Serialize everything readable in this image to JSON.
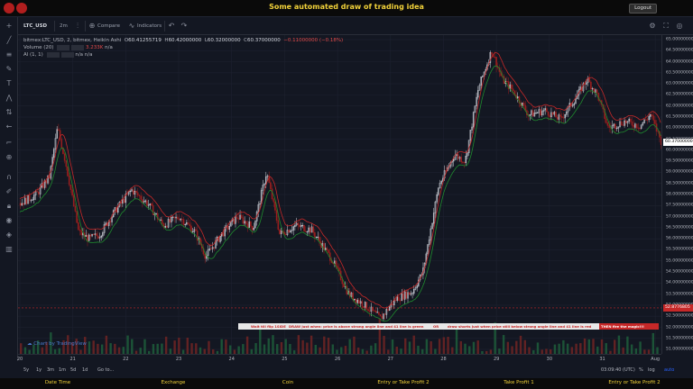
{
  "app": {
    "title": "Some automated draw of trading idea",
    "logout_label": "Logout"
  },
  "toolbar": {
    "symbol": "LTC_USD",
    "interval": "2m",
    "compare_label": "Compare",
    "indicators_label": "Indicators"
  },
  "legend": {
    "title": "bitmex:LTC_USD, 2, bitmex, Heikin Ashi",
    "open_label": "O",
    "open": "60.41255719",
    "high_label": "H",
    "high": "60.42000000",
    "low_label": "L",
    "low": "60.32000000",
    "close_label": "C",
    "close": "60.37000000",
    "change": "−0.11000000 (−0.18%)",
    "volume_label": "Volume (20)",
    "volume_value": "3.233K",
    "volume_na": "n/a",
    "al_label": "Al (1, 1)",
    "al_na1": "n/a",
    "al_na2": "n/a"
  },
  "signal": {
    "seg1": "Wait till flip 1SIDE",
    "seg2": "DRAW just when: price is above strong angle line and 41 line is green",
    "seg3": "OR",
    "seg4": "draw shorts just when price still below strong angle line and 41 line is red",
    "end": "THEN fire the magic!!!",
    "price": "52.8776805"
  },
  "watermark": "Chart by TradingView",
  "bottombar": {
    "ranges": [
      "5y",
      "1y",
      "3m",
      "1m",
      "5d",
      "1d",
      "Go to..."
    ],
    "time": "03:09:40 (UTC)",
    "pct": "%",
    "log": "log",
    "auto": "auto"
  },
  "footer": [
    "Date Time",
    "Exchange",
    "Coin",
    "Entry or Take Profit 2",
    "Take Profit 1",
    "Entry or Take Profit 2"
  ],
  "colors": {
    "up": "#d1d4dc",
    "down": "#c62828",
    "green_line": "#1f8a2e",
    "red_line": "#c62828",
    "accent": "#f2d23a"
  },
  "chart_data": {
    "type": "line",
    "title": "",
    "y_ticks": [
      "65.00000000",
      "64.50000000",
      "64.00000000",
      "63.50000000",
      "63.00000000",
      "62.50000000",
      "62.00000000",
      "61.50000000",
      "61.00000000",
      "60.50000000",
      "60.00000000",
      "59.50000000",
      "59.00000000",
      "58.50000000",
      "58.00000000",
      "57.50000000",
      "57.00000000",
      "56.50000000",
      "56.00000000",
      "55.50000000",
      "55.00000000",
      "54.50000000",
      "54.00000000",
      "53.50000000",
      "53.00000000",
      "52.50000000",
      "52.00000000",
      "51.50000000",
      "51.00000000"
    ],
    "last_price": "60.37000000",
    "x_ticks": [
      "20",
      "21",
      "22",
      "23",
      "24",
      "25",
      "26",
      "27",
      "28",
      "29",
      "30",
      "31",
      "Aug"
    ],
    "ylim": [
      50.8,
      65.2
    ],
    "price_path": [
      {
        "x": 0,
        "y": 57.6
      },
      {
        "x": 0.3,
        "y": 58.0
      },
      {
        "x": 0.55,
        "y": 58.8
      },
      {
        "x": 0.7,
        "y": 61.0
      },
      {
        "x": 0.85,
        "y": 59.5
      },
      {
        "x": 1.1,
        "y": 56.3
      },
      {
        "x": 1.3,
        "y": 56.0
      },
      {
        "x": 1.5,
        "y": 56.2
      },
      {
        "x": 1.8,
        "y": 57.3
      },
      {
        "x": 2.1,
        "y": 58.2
      },
      {
        "x": 2.4,
        "y": 57.6
      },
      {
        "x": 2.7,
        "y": 56.6
      },
      {
        "x": 3.0,
        "y": 57.0
      },
      {
        "x": 3.3,
        "y": 56.3
      },
      {
        "x": 3.5,
        "y": 55.2
      },
      {
        "x": 3.8,
        "y": 56.2
      },
      {
        "x": 4.1,
        "y": 57.0
      },
      {
        "x": 4.4,
        "y": 56.5
      },
      {
        "x": 4.65,
        "y": 59.0
      },
      {
        "x": 4.9,
        "y": 56.2
      },
      {
        "x": 5.2,
        "y": 56.6
      },
      {
        "x": 5.5,
        "y": 56.4
      },
      {
        "x": 5.9,
        "y": 55.0
      },
      {
        "x": 6.2,
        "y": 53.5
      },
      {
        "x": 6.5,
        "y": 53.0
      },
      {
        "x": 6.8,
        "y": 52.4
      },
      {
        "x": 7.1,
        "y": 53.3
      },
      {
        "x": 7.4,
        "y": 53.6
      },
      {
        "x": 7.6,
        "y": 54.5
      },
      {
        "x": 7.9,
        "y": 58.4
      },
      {
        "x": 8.2,
        "y": 59.8
      },
      {
        "x": 8.4,
        "y": 59.5
      },
      {
        "x": 8.65,
        "y": 62.8
      },
      {
        "x": 8.9,
        "y": 64.5
      },
      {
        "x": 9.1,
        "y": 63.2
      },
      {
        "x": 9.3,
        "y": 62.7
      },
      {
        "x": 9.6,
        "y": 61.6
      },
      {
        "x": 9.9,
        "y": 61.8
      },
      {
        "x": 10.2,
        "y": 61.4
      },
      {
        "x": 10.5,
        "y": 62.4
      },
      {
        "x": 10.7,
        "y": 63.2
      },
      {
        "x": 10.9,
        "y": 62.5
      },
      {
        "x": 11.1,
        "y": 61.0
      },
      {
        "x": 11.4,
        "y": 61.3
      },
      {
        "x": 11.7,
        "y": 61.1
      },
      {
        "x": 11.9,
        "y": 61.6
      },
      {
        "x": 12.1,
        "y": 60.4
      }
    ],
    "volume": {
      "y_max_shown": 1,
      "x_count": 150
    }
  }
}
